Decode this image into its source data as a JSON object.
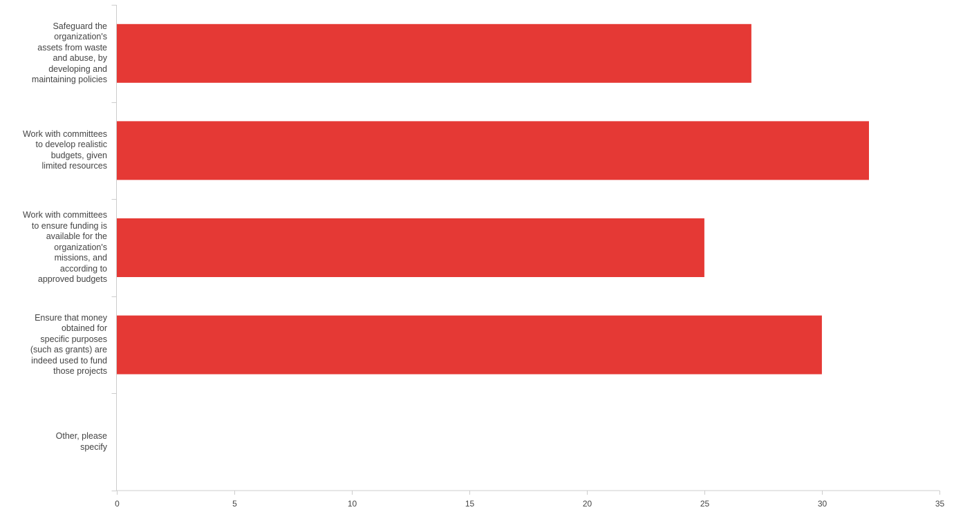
{
  "chart_data": {
    "type": "bar",
    "orientation": "horizontal",
    "categories": [
      "Safeguard the organization's assets from waste and abuse, by developing and maintaining policies",
      "Work with committees to develop realistic budgets, given limited resources",
      "Work with committees to ensure funding is available for the organization's missions, and according to approved budgets",
      "Ensure that money obtained for specific purposes (such as grants) are indeed used to fund those projects",
      "Other, please specify"
    ],
    "category_lines": [
      [
        "Safeguard the",
        "organization's",
        "assets from waste",
        "and abuse, by",
        "developing and",
        "maintaining policies"
      ],
      [
        "Work with committees",
        "to develop realistic",
        "budgets, given",
        "limited resources"
      ],
      [
        "Work with committees",
        "to ensure funding is",
        "available for the",
        "organization's",
        "missions, and",
        "according to",
        "approved budgets"
      ],
      [
        "Ensure that money",
        "obtained for",
        "specific purposes",
        "(such as grants) are",
        "indeed used to fund",
        "those projects"
      ],
      [
        "Other, please",
        "specify"
      ]
    ],
    "values": [
      27,
      32,
      25,
      30,
      0
    ],
    "xlim": [
      0,
      35
    ],
    "xticks": [
      0,
      5,
      10,
      15,
      20,
      25,
      30,
      35
    ],
    "title": "",
    "xlabel": "",
    "ylabel": "",
    "grid": false,
    "bar_color": "#e53935",
    "axis_color": "#cccccc",
    "text_color": "#444444"
  }
}
